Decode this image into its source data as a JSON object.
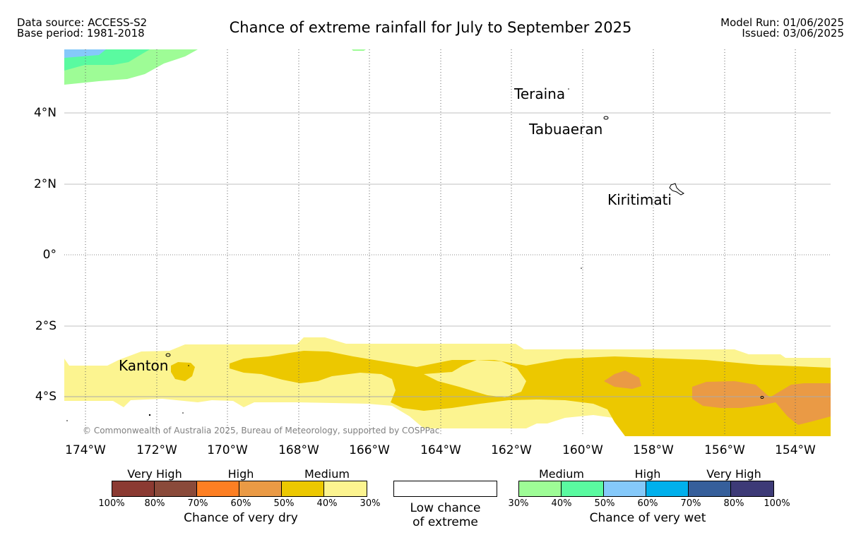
{
  "header": {
    "data_source": "Data source: ACCESS-S2",
    "base_period": "Base period: 1981-2018",
    "title": "Chance of extreme rainfall for July to September 2025",
    "model_run": "Model Run: 01/06/2025",
    "issued": "Issued: 03/06/2025"
  },
  "map": {
    "lat_labels": [
      "4°N",
      "2°N",
      "0°",
      "2°S",
      "4°S"
    ],
    "lon_labels": [
      "174°W",
      "172°W",
      "170°W",
      "168°W",
      "166°W",
      "164°W",
      "162°W",
      "160°W",
      "158°W",
      "156°W",
      "154°W"
    ],
    "places": [
      "Teraina",
      "Tabuaeran",
      "Kiritimati",
      "Kanton"
    ],
    "copyright": "© Commonwealth of Australia 2025, Bureau of Meteorology, supported by COSPPac"
  },
  "legend": {
    "dry": {
      "categories": [
        "Very High",
        "High",
        "Medium"
      ],
      "ticks": [
        "100%",
        "80%",
        "70%",
        "60%",
        "50%",
        "40%",
        "30%"
      ],
      "colors": [
        "#8b3a32",
        "#8a4a3a",
        "#fd7f23",
        "#ea9a45",
        "#ecc800",
        "#fcf490"
      ],
      "caption": "Chance of very dry"
    },
    "low": {
      "caption_line1": "Low chance",
      "caption_line2": "of extreme",
      "color": "#ffffff"
    },
    "wet": {
      "categories": [
        "Medium",
        "High",
        "Very High"
      ],
      "ticks": [
        "30%",
        "40%",
        "50%",
        "60%",
        "70%",
        "80%",
        "100%"
      ],
      "colors": [
        "#9efc96",
        "#5afaa0",
        "#85c9fa",
        "#00b0ec",
        "#365f9b",
        "#3d3a77"
      ],
      "caption": "Chance of very wet"
    }
  }
}
